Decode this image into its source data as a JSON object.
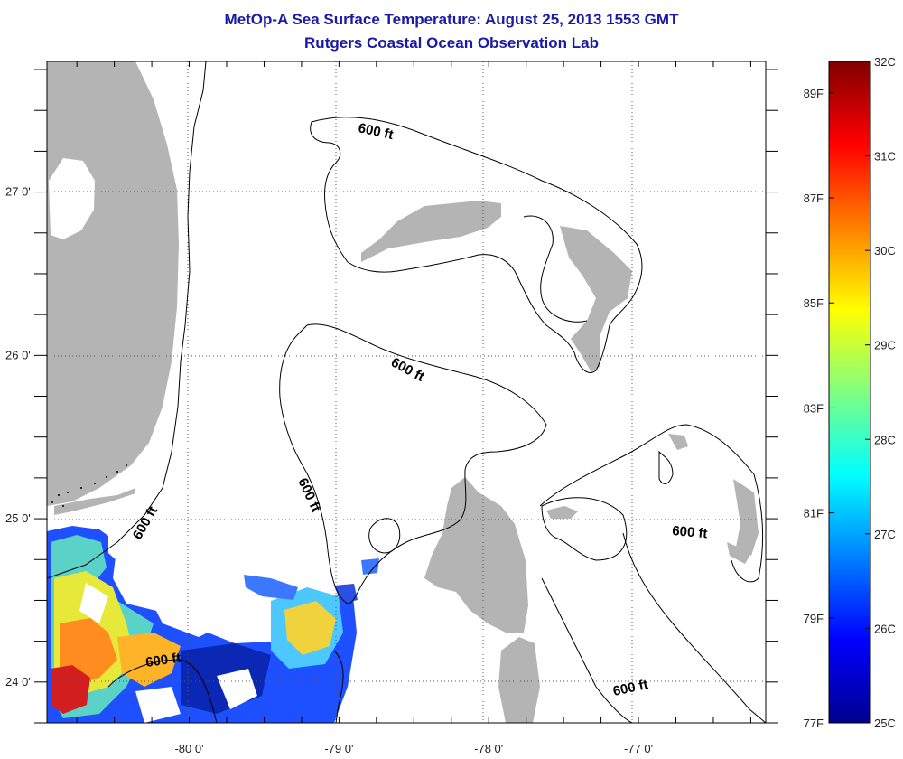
{
  "title": "MetOp-A Sea Surface Temperature:  August 25, 2013 1553 GMT",
  "subtitle": "Rutgers Coastal Ocean Observation Lab",
  "map": {
    "lon_range": [
      -80.95,
      -76.15
    ],
    "lat_range": [
      23.75,
      27.8
    ],
    "lon_ticks": [
      {
        "value": -80,
        "label": "-80 0'"
      },
      {
        "value": -79,
        "label": "-79 0'"
      },
      {
        "value": -78,
        "label": "-78 0'"
      },
      {
        "value": -77,
        "label": "-77 0'"
      }
    ],
    "lat_ticks": [
      {
        "value": 27,
        "label": "27 0'"
      },
      {
        "value": 26,
        "label": "26 0'"
      },
      {
        "value": 25,
        "label": "25 0'"
      },
      {
        "value": 24,
        "label": "24 0'"
      }
    ],
    "grid": "dotted",
    "contour_label": "600 ft",
    "land_color": "#b4b4b4",
    "no_data_color": "#ffffff"
  },
  "colorbar": {
    "celsius": [
      {
        "value": 32,
        "label": "32C"
      },
      {
        "value": 31,
        "label": "31C"
      },
      {
        "value": 30,
        "label": "30C"
      },
      {
        "value": 29,
        "label": "29C"
      },
      {
        "value": 28,
        "label": "28C"
      },
      {
        "value": 27,
        "label": "27C"
      },
      {
        "value": 26,
        "label": "26C"
      },
      {
        "value": 25,
        "label": "25C"
      }
    ],
    "fahrenheit": [
      {
        "value": 89,
        "label": "89F"
      },
      {
        "value": 87,
        "label": "87F"
      },
      {
        "value": 85,
        "label": "85F"
      },
      {
        "value": 83,
        "label": "83F"
      },
      {
        "value": 81,
        "label": "81F"
      },
      {
        "value": 79,
        "label": "79F"
      },
      {
        "value": 77,
        "label": "77F"
      }
    ],
    "colormap": "jet",
    "range_c": [
      25,
      32
    ]
  }
}
